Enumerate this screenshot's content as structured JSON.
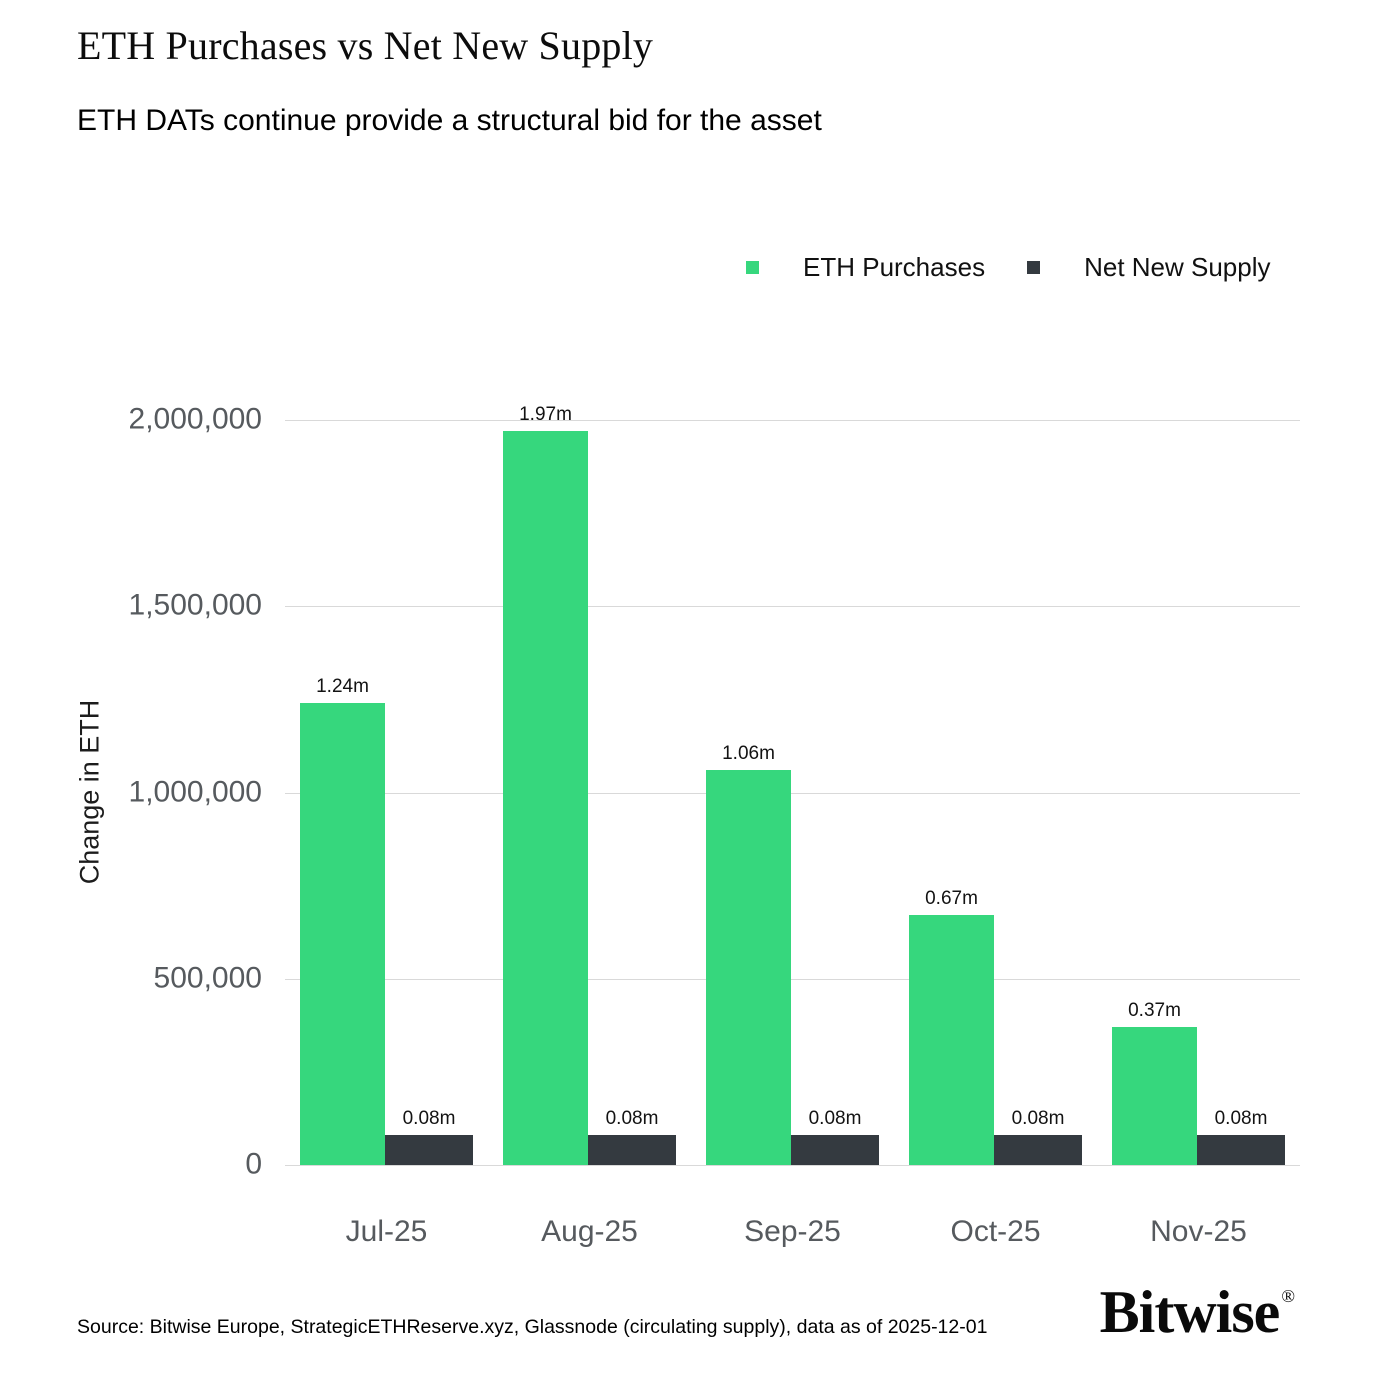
{
  "chart_data": {
    "type": "bar",
    "title": "ETH Purchases vs Net New Supply",
    "subtitle": "ETH DATs continue provide a structural bid for the asset",
    "ylabel": "Change in ETH",
    "xlabel": "",
    "categories": [
      "Jul-25",
      "Aug-25",
      "Sep-25",
      "Oct-25",
      "Nov-25"
    ],
    "series": [
      {
        "name": "ETH Purchases",
        "color": "#36d77d",
        "values": [
          1240000,
          1970000,
          1060000,
          670000,
          370000
        ],
        "labels": [
          "1.24m",
          "1.97m",
          "1.06m",
          "0.67m",
          "0.37m"
        ]
      },
      {
        "name": "Net New Supply",
        "color": "#343a40",
        "values": [
          80000,
          80000,
          80000,
          80000,
          80000
        ],
        "labels": [
          "0.08m",
          "0.08m",
          "0.08m",
          "0.08m",
          "0.08m"
        ]
      }
    ],
    "ylim": [
      0,
      2000000
    ],
    "yticks": {
      "values": [
        0,
        500000,
        1000000,
        1500000,
        2000000
      ],
      "labels": [
        "0",
        "500,000",
        "1,000,000",
        "1,500,000",
        "2,000,000"
      ]
    },
    "grid": true,
    "gridline_color": "#d9d9d9",
    "legend_position": "top-right"
  },
  "footer": {
    "source": "Source: Bitwise Europe, StrategicETHReserve.xyz, Glassnode (circulating supply), data as of 2025-12-01",
    "logo_text": "Bitwise",
    "registered_mark": "®"
  }
}
